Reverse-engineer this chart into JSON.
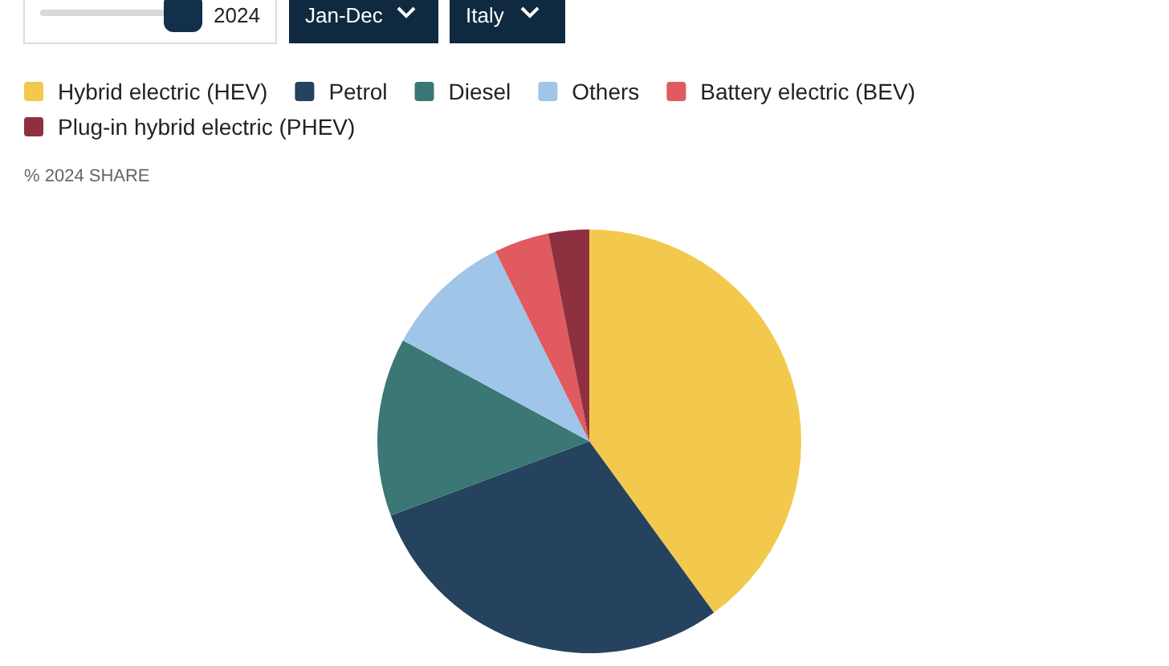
{
  "chart_data": {
    "type": "pie",
    "subtitle": "% 2024 SHARE",
    "categories": [
      "Hybrid electric (HEV)",
      "Petrol",
      "Diesel",
      "Others",
      "Battery electric (BEV)",
      "Plug-in hybrid electric (PHEV)"
    ],
    "values": [
      40,
      29.3,
      13.6,
      9.8,
      4.2,
      3.1
    ],
    "colors": [
      "#f2c94c",
      "#25425f",
      "#3a7775",
      "#9fc5e8",
      "#e05a5f",
      "#8e3040"
    ],
    "legend": "top left",
    "annotations": [
      "2024",
      "Jan-Dec",
      "Italy"
    ]
  }
}
